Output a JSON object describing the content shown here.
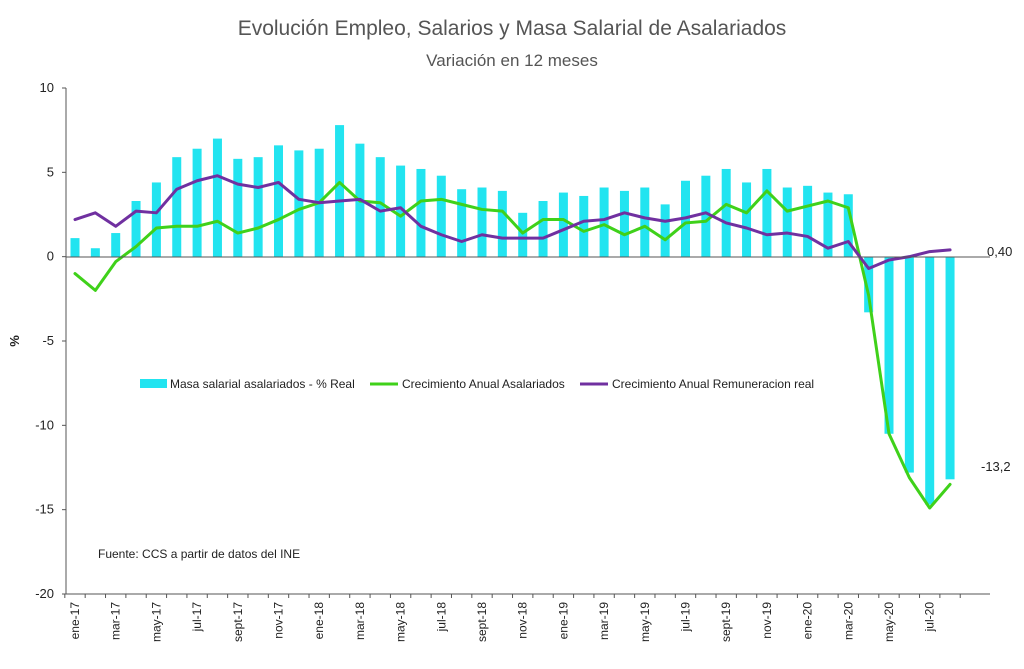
{
  "chart_data": {
    "type": "bar",
    "title": "Evolución Empleo, Salarios y Masa Salarial de Asalariados",
    "subtitle": "Variación en 12 meses",
    "ylabel": "%",
    "ylim": [
      -20,
      10
    ],
    "yticks": [
      -20,
      -15,
      -10,
      -5,
      0,
      5,
      10
    ],
    "grid": false,
    "legend_position": "center",
    "note": "Fuente: CCS a partir de datos del INE",
    "x_tick_labels": [
      "ene-17",
      "mar-17",
      "may-17",
      "jul-17",
      "sept-17",
      "nov-17",
      "ene-18",
      "mar-18",
      "may-18",
      "jul-18",
      "sept-18",
      "nov-18",
      "ene-19",
      "mar-19",
      "may-19",
      "jul-19",
      "sept-19",
      "nov-19",
      "ene-20",
      "mar-20",
      "may-20",
      "jul-20"
    ],
    "categories": [
      "ene-17",
      "feb-17",
      "mar-17",
      "abr-17",
      "may-17",
      "jun-17",
      "jul-17",
      "ago-17",
      "sept-17",
      "oct-17",
      "nov-17",
      "dic-17",
      "ene-18",
      "feb-18",
      "mar-18",
      "abr-18",
      "may-18",
      "jun-18",
      "jul-18",
      "ago-18",
      "sept-18",
      "oct-18",
      "nov-18",
      "dic-18",
      "ene-19",
      "feb-19",
      "mar-19",
      "abr-19",
      "may-19",
      "jun-19",
      "jul-19",
      "ago-19",
      "sept-19",
      "oct-19",
      "nov-19",
      "dic-19",
      "ene-20",
      "feb-20",
      "mar-20",
      "abr-20",
      "may-20",
      "jun-20",
      "jul-20",
      "ago-20"
    ],
    "series": [
      {
        "name": "Masa salarial asalariados - % Real",
        "type": "bar",
        "color": "#22e4f0",
        "values": [
          1.1,
          0.5,
          1.4,
          3.3,
          4.4,
          5.9,
          6.4,
          7.0,
          5.8,
          5.9,
          6.6,
          6.3,
          6.4,
          7.8,
          6.7,
          5.9,
          5.4,
          5.2,
          4.8,
          4.0,
          4.1,
          3.9,
          2.6,
          3.3,
          3.8,
          3.6,
          4.1,
          3.9,
          4.1,
          3.1,
          4.5,
          4.8,
          5.2,
          4.4,
          5.2,
          4.1,
          4.2,
          3.8,
          3.7,
          -3.3,
          -10.5,
          -12.8,
          -14.7,
          -13.2
        ]
      },
      {
        "name": "Crecimiento Anual Asalariados",
        "type": "line",
        "color": "#3fd11a",
        "values": [
          -1.0,
          -2.0,
          -0.3,
          0.6,
          1.7,
          1.8,
          1.8,
          2.1,
          1.4,
          1.7,
          2.2,
          2.8,
          3.2,
          4.4,
          3.3,
          3.2,
          2.4,
          3.3,
          3.4,
          3.1,
          2.8,
          2.7,
          1.4,
          2.2,
          2.2,
          1.5,
          1.9,
          1.3,
          1.8,
          1.0,
          2.0,
          2.1,
          3.1,
          2.6,
          3.9,
          2.7,
          3.0,
          3.3,
          2.9,
          -2.3,
          -10.5,
          -13.1,
          -14.9,
          -13.5
        ]
      },
      {
        "name": "Crecimiento Anual Remuneracion real",
        "type": "line",
        "color": "#7030a0",
        "values": [
          2.2,
          2.6,
          1.8,
          2.7,
          2.6,
          4.0,
          4.5,
          4.8,
          4.3,
          4.1,
          4.4,
          3.4,
          3.2,
          3.3,
          3.4,
          2.7,
          2.9,
          1.8,
          1.3,
          0.9,
          1.3,
          1.1,
          1.1,
          1.1,
          1.6,
          2.1,
          2.2,
          2.6,
          2.3,
          2.1,
          2.3,
          2.6,
          2.0,
          1.7,
          1.3,
          1.4,
          1.2,
          0.5,
          0.9,
          -0.7,
          -0.2,
          0.0,
          0.3,
          0.4
        ]
      }
    ],
    "end_labels": {
      "remuneracion": "0,40",
      "masa": "-13,2"
    }
  }
}
